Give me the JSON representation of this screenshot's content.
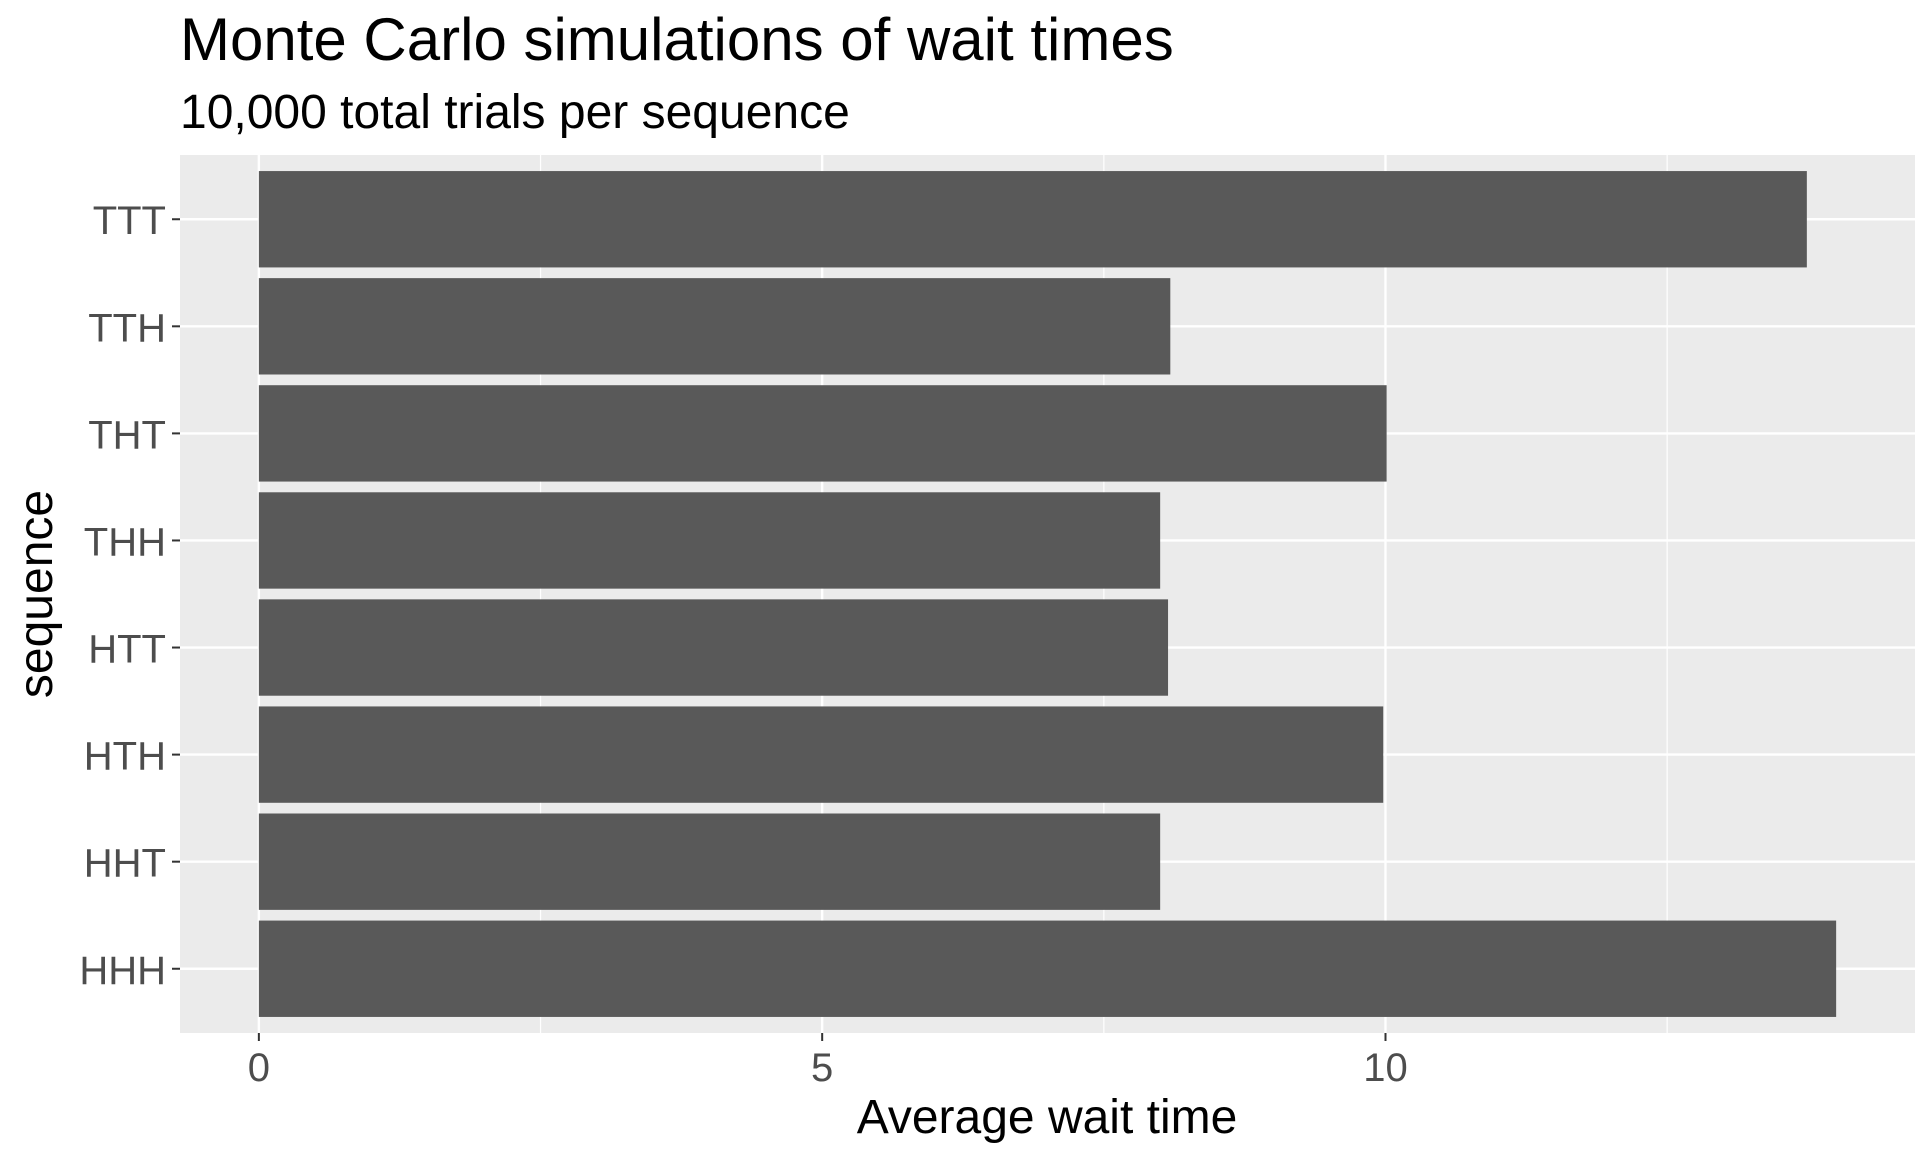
{
  "chart_data": {
    "type": "bar",
    "orientation": "horizontal",
    "title": "Monte Carlo simulations of wait times",
    "subtitle": "10,000 total trials per sequence",
    "xlabel": "Average wait time",
    "ylabel": "sequence",
    "categories": [
      "TTT",
      "TTH",
      "THT",
      "THH",
      "HTT",
      "HTH",
      "HHT",
      "HHH"
    ],
    "values": [
      13.74,
      8.09,
      10.01,
      8.0,
      8.07,
      9.98,
      8.0,
      14.0
    ],
    "x_ticks": [
      0,
      5,
      10
    ],
    "x_tick_labels": [
      "0",
      "5",
      "10"
    ],
    "xlim": [
      -0.7,
      14.7
    ],
    "grid": true,
    "bar_color": "#595959",
    "panel_color": "#ebebeb",
    "grid_color": "#ffffff"
  }
}
